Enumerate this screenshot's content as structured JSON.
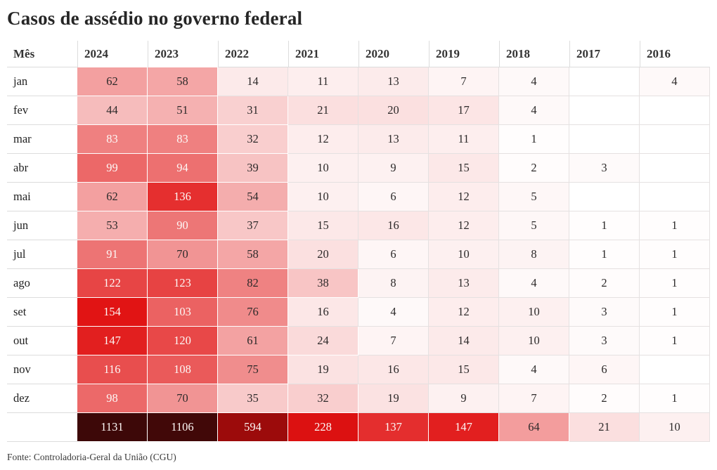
{
  "title": "Casos de assédio no governo federal",
  "source": "Fonte: Controladoria-Geral da União (CGU)",
  "chart_data": {
    "type": "heatmap",
    "title": "Casos de assédio no governo federal",
    "row_header_label": "Mês",
    "columns": [
      "2024",
      "2023",
      "2022",
      "2021",
      "2020",
      "2019",
      "2018",
      "2017",
      "2016"
    ],
    "rows": [
      "jan",
      "fev",
      "mar",
      "abr",
      "mai",
      "jun",
      "jul",
      "ago",
      "set",
      "out",
      "nov",
      "dez"
    ],
    "values": [
      [
        62,
        58,
        14,
        11,
        13,
        7,
        4,
        null,
        4
      ],
      [
        44,
        51,
        31,
        21,
        20,
        17,
        4,
        null,
        null
      ],
      [
        83,
        83,
        32,
        12,
        13,
        11,
        1,
        null,
        null
      ],
      [
        99,
        94,
        39,
        10,
        9,
        15,
        2,
        3,
        null
      ],
      [
        62,
        136,
        54,
        10,
        6,
        12,
        5,
        null,
        null
      ],
      [
        53,
        90,
        37,
        15,
        16,
        12,
        5,
        1,
        1
      ],
      [
        91,
        70,
        58,
        20,
        6,
        10,
        8,
        1,
        1
      ],
      [
        122,
        123,
        82,
        38,
        8,
        13,
        4,
        2,
        1
      ],
      [
        154,
        103,
        76,
        16,
        4,
        12,
        10,
        3,
        1
      ],
      [
        147,
        120,
        61,
        24,
        7,
        14,
        10,
        3,
        1
      ],
      [
        116,
        108,
        75,
        19,
        16,
        15,
        4,
        6,
        null
      ],
      [
        98,
        70,
        35,
        32,
        19,
        9,
        7,
        2,
        1
      ]
    ],
    "totals": [
      1131,
      1106,
      594,
      228,
      137,
      147,
      64,
      21,
      10
    ],
    "color_scale": {
      "stops": [
        [
          0,
          "#ffffff"
        ],
        [
          154,
          "#e11414"
        ],
        [
          228,
          "#dc1111"
        ],
        [
          594,
          "#9c0b0b"
        ],
        [
          1131,
          "#3d0808"
        ]
      ],
      "white_text_threshold": 83,
      "pale_border_threshold": 24,
      "text_on_dark": "#fcf7f5",
      "text_dark": "#2d2a2a",
      "grid": "#e5e1e1"
    }
  }
}
